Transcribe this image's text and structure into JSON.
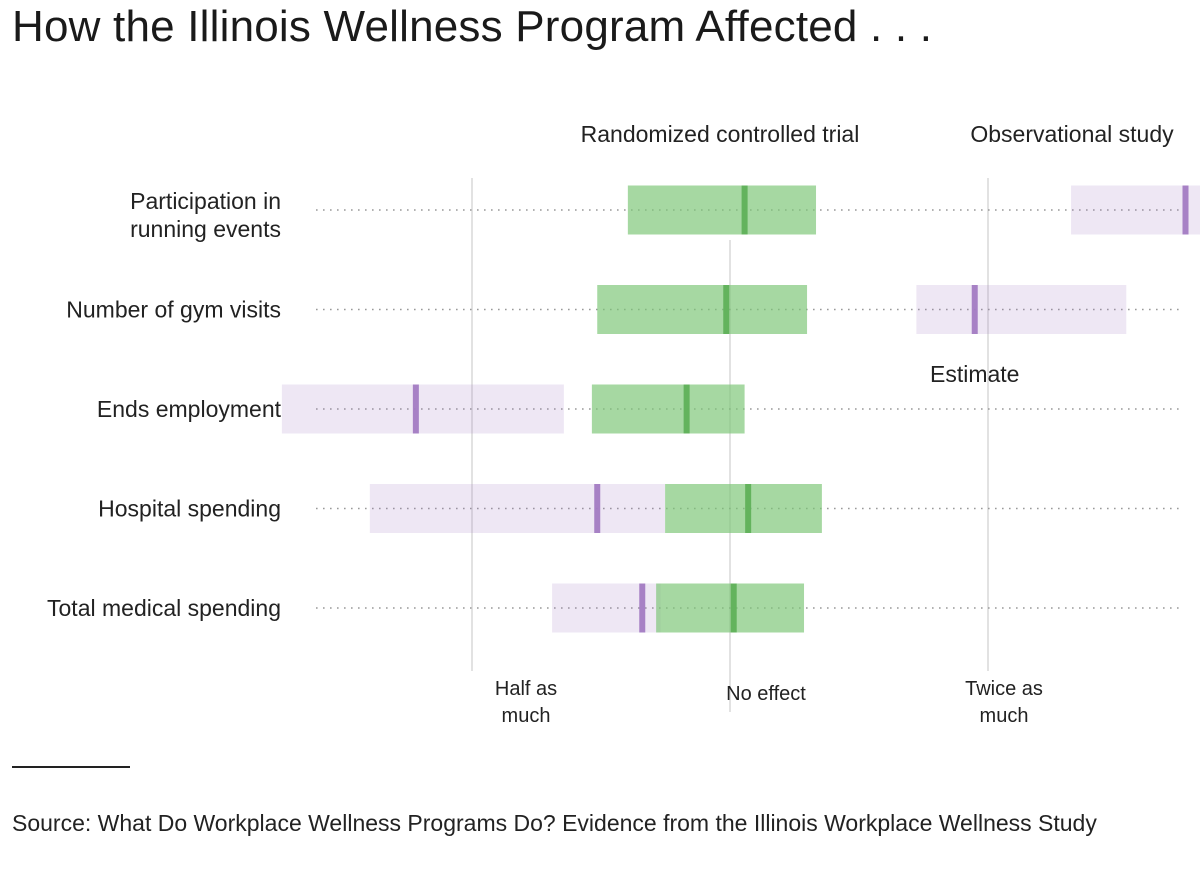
{
  "title": "How the Illinois Wellness Program Affected . . .",
  "source": "Source: What Do Workplace Wellness Programs Do? Evidence from the Illinois Workplace Wellness Study",
  "chart_data": {
    "type": "interval",
    "scale": "log2 ratio (1 = no effect)",
    "x_ticks": [
      {
        "value": 0.5,
        "label": "Half as much"
      },
      {
        "value": 1,
        "label": "No effect"
      },
      {
        "value": 2,
        "label": "Twice as much"
      }
    ],
    "series": [
      {
        "name": "Randomized controlled trial",
        "color": "#7cc576"
      },
      {
        "name": "Observational study",
        "color": "#a27bc2"
      }
    ],
    "annotation": "Estimate",
    "rows": [
      {
        "label": "Participation in running events",
        "rct": {
          "low": 0.76,
          "estimate": 1.04,
          "high": 1.26
        },
        "obs": {
          "low": 2.5,
          "estimate": 3.4,
          "high": 3.9
        }
      },
      {
        "label": "Number of gym visits",
        "rct": {
          "low": 0.7,
          "estimate": 0.99,
          "high": 1.23
        },
        "obs": {
          "low": 1.65,
          "estimate": 1.93,
          "high": 2.9
        }
      },
      {
        "label": "Ends employment",
        "rct": {
          "low": 0.69,
          "estimate": 0.89,
          "high": 1.04
        },
        "obs": {
          "low": 0.3,
          "estimate": 0.43,
          "high": 0.64
        }
      },
      {
        "label": "Hospital spending",
        "rct": {
          "low": 0.84,
          "estimate": 1.05,
          "high": 1.28
        },
        "obs": {
          "low": 0.38,
          "estimate": 0.7,
          "high": 0.84
        }
      },
      {
        "label": "Total medical spending",
        "rct": {
          "low": 0.82,
          "estimate": 1.01,
          "high": 1.22
        },
        "obs": {
          "low": 0.62,
          "estimate": 0.79,
          "high": 0.83
        }
      }
    ]
  }
}
